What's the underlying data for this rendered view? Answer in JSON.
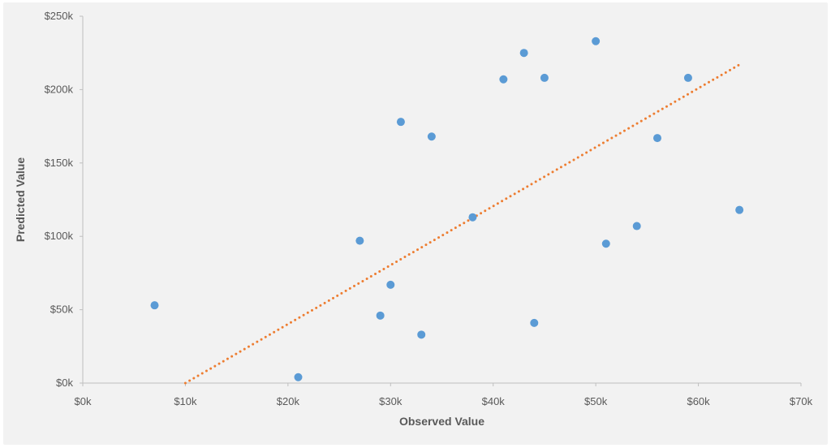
{
  "chart_data": {
    "type": "scatter",
    "title": "",
    "xlabel": "Observed Value",
    "ylabel": "Predicted Value",
    "xlim": [
      0,
      70000
    ],
    "ylim": [
      0,
      250000
    ],
    "x_ticks": [
      0,
      10000,
      20000,
      30000,
      40000,
      50000,
      60000,
      70000
    ],
    "x_tick_labels": [
      "$0k",
      "$10k",
      "$20k",
      "$30k",
      "$40k",
      "$50k",
      "$60k",
      "$70k"
    ],
    "y_ticks": [
      0,
      50000,
      100000,
      150000,
      200000,
      250000
    ],
    "y_tick_labels": [
      "$0k",
      "$50k",
      "$100k",
      "$150k",
      "$200k",
      "$250k"
    ],
    "grid": false,
    "legend": "none",
    "colors": {
      "points": "#5b9bd5",
      "trendline": "#ed7d31",
      "axis": "#bfbfbf",
      "background": "#f2f2f2"
    },
    "series": [
      {
        "points": [
          {
            "x": 7000,
            "y": 53000
          },
          {
            "x": 21000,
            "y": 4000
          },
          {
            "x": 27000,
            "y": 97000
          },
          {
            "x": 29000,
            "y": 46000
          },
          {
            "x": 30000,
            "y": 67000
          },
          {
            "x": 31000,
            "y": 178000
          },
          {
            "x": 33000,
            "y": 33000
          },
          {
            "x": 34000,
            "y": 168000
          },
          {
            "x": 38000,
            "y": 113000
          },
          {
            "x": 41000,
            "y": 207000
          },
          {
            "x": 43000,
            "y": 225000
          },
          {
            "x": 44000,
            "y": 41000
          },
          {
            "x": 45000,
            "y": 208000
          },
          {
            "x": 50000,
            "y": 233000
          },
          {
            "x": 51000,
            "y": 95000
          },
          {
            "x": 54000,
            "y": 107000
          },
          {
            "x": 56000,
            "y": 167000
          },
          {
            "x": 59000,
            "y": 208000
          },
          {
            "x": 64000,
            "y": 118000
          }
        ]
      }
    ],
    "trendline": {
      "type": "linear",
      "style": "dotted",
      "from": {
        "x": 10000,
        "y": 0
      },
      "to": {
        "x": 64000,
        "y": 217000
      }
    }
  }
}
